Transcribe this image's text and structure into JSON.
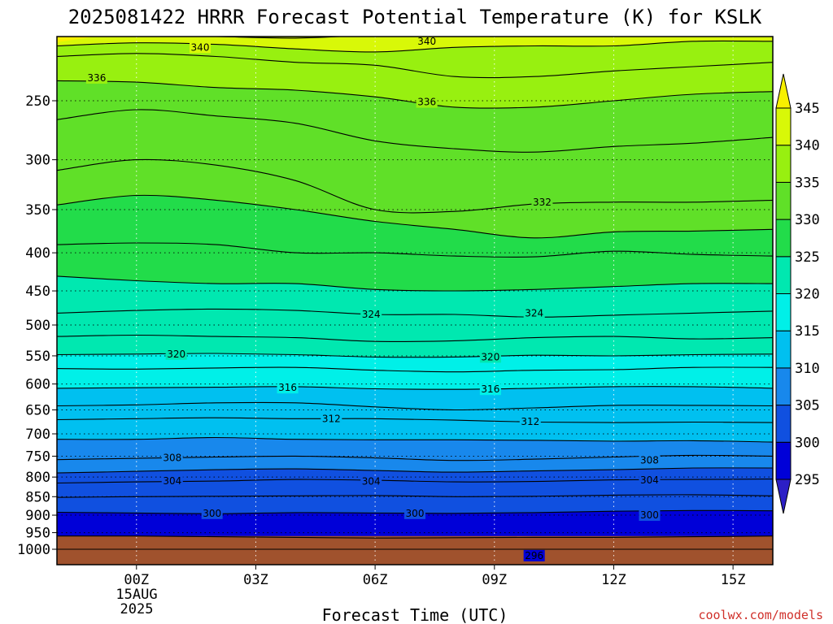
{
  "chart_data": {
    "type": "heatmap",
    "title": "2025081422 HRRR Forecast Potential Temperature (K) for KSLK",
    "xlabel": "Forecast Time (UTC)",
    "ylabel": "",
    "x_tick_labels": [
      "00Z",
      "03Z",
      "06Z",
      "09Z",
      "12Z",
      "15Z"
    ],
    "x_ticks_hours": [
      0,
      3,
      6,
      9,
      12,
      15
    ],
    "x_date_line1": "15AUG",
    "x_date_line2": "2025",
    "xlim_hours": [
      -2,
      16
    ],
    "y_tick_labels": [
      "250",
      "300",
      "350",
      "400",
      "450",
      "500",
      "550",
      "600",
      "650",
      "700",
      "750",
      "800",
      "850",
      "900",
      "950",
      "1000"
    ],
    "y_ticks": [
      250,
      300,
      350,
      400,
      450,
      500,
      550,
      600,
      650,
      700,
      750,
      800,
      850,
      900,
      950,
      1000
    ],
    "ylim_hpa": [
      1050,
      200
    ],
    "y_scale": "log (pressure)",
    "grid": "dotted",
    "surface_pressure_hpa": 960,
    "colorbar": {
      "levels": [
        "295",
        "300",
        "305",
        "310",
        "315",
        "320",
        "325",
        "330",
        "335",
        "340",
        "345"
      ],
      "colors": [
        "#2c1fc6",
        "#0000d8",
        "#1050e0",
        "#1888ec",
        "#00c0f0",
        "#00f0e8",
        "#00e8b0",
        "#22dc4a",
        "#60e028",
        "#98f010",
        "#d8f808",
        "#f8f000"
      ],
      "extends": "both"
    },
    "fill_bands": [
      {
        "range": "<295",
        "color": "#2c1fc6"
      },
      {
        "range": "295-300",
        "color": "#0000d8"
      },
      {
        "range": "300-305",
        "color": "#1050e0"
      },
      {
        "range": "305-310",
        "color": "#1888ec"
      },
      {
        "range": "310-315",
        "color": "#00c0f0"
      },
      {
        "range": "315-320",
        "color": "#00f0e8"
      },
      {
        "range": "320-325",
        "color": "#00e8b0"
      },
      {
        "range": "325-330",
        "color": "#22dc4a"
      },
      {
        "range": "330-335",
        "color": "#60e028"
      },
      {
        "range": "335-340",
        "color": "#98f010"
      },
      {
        "range": "340-345",
        "color": "#d8f808"
      },
      {
        "range": ">345",
        "color": "#f8f000"
      }
    ],
    "isentropes": {
      "x_hours": [
        -2,
        0,
        2,
        4,
        6,
        8,
        10,
        12,
        14,
        16
      ],
      "lines": [
        {
          "theta": 296,
          "p": [
            1000,
            1000,
            1000,
            1000,
            1000,
            1000,
            1000,
            1000,
            1000,
            1000
          ]
        },
        {
          "theta": 298,
          "p": [
            960,
            960,
            962,
            964,
            966,
            965,
            964,
            964,
            962,
            960
          ]
        },
        {
          "theta": 300,
          "p": [
            892,
            894,
            896,
            893,
            894,
            895,
            893,
            889,
            887,
            888
          ]
        },
        {
          "theta": 302,
          "p": [
            852,
            850,
            849,
            848,
            847,
            850,
            849,
            846,
            845,
            848
          ]
        },
        {
          "theta": 304,
          "p": [
            815,
            812,
            810,
            806,
            808,
            812,
            811,
            807,
            806,
            805
          ]
        },
        {
          "theta": 306,
          "p": [
            790,
            786,
            782,
            780,
            784,
            788,
            785,
            782,
            778,
            778
          ]
        },
        {
          "theta": 308,
          "p": [
            758,
            755,
            752,
            750,
            754,
            760,
            757,
            752,
            748,
            750
          ]
        },
        {
          "theta": 310,
          "p": [
            712,
            712,
            708,
            712,
            713,
            713,
            714,
            716,
            715,
            718
          ]
        },
        {
          "theta": 312,
          "p": [
            670,
            668,
            666,
            668,
            668,
            671,
            675,
            676,
            675,
            676
          ]
        },
        {
          "theta": 314,
          "p": [
            642,
            640,
            636,
            636,
            644,
            650,
            646,
            641,
            641,
            642
          ]
        },
        {
          "theta": 316,
          "p": [
            608,
            607,
            606,
            605,
            609,
            610,
            608,
            605,
            605,
            608
          ]
        },
        {
          "theta": 318,
          "p": [
            572,
            573,
            571,
            570,
            575,
            578,
            575,
            574,
            570,
            570
          ]
        },
        {
          "theta": 320,
          "p": [
            548,
            547,
            546,
            548,
            552,
            552,
            549,
            550,
            548,
            547
          ]
        },
        {
          "theta": 322,
          "p": [
            518,
            516,
            518,
            520,
            526,
            525,
            520,
            518,
            522,
            520
          ]
        },
        {
          "theta": 324,
          "p": [
            482,
            478,
            476,
            478,
            484,
            484,
            488,
            485,
            482,
            479
          ]
        },
        {
          "theta": 326,
          "p": [
            430,
            436,
            440,
            440,
            448,
            450,
            448,
            444,
            440,
            440
          ]
        },
        {
          "theta": 328,
          "p": [
            390,
            388,
            390,
            400,
            400,
            404,
            405,
            398,
            402,
            404
          ]
        },
        {
          "theta": 330,
          "p": [
            345,
            335,
            340,
            350,
            363,
            372,
            382,
            375,
            374,
            372
          ]
        },
        {
          "theta": 332,
          "p": [
            310,
            300,
            305,
            320,
            350,
            352,
            344,
            342,
            342,
            340
          ]
        },
        {
          "theta": 334,
          "p": [
            265,
            257,
            262,
            268,
            283,
            290,
            293,
            288,
            285,
            280
          ]
        },
        {
          "theta": 336,
          "p": [
            235,
            236,
            240,
            242,
            247,
            255,
            255,
            250,
            245,
            243
          ]
        },
        {
          "theta": 338,
          "p": [
            218,
            216,
            218,
            222,
            224,
            232,
            232,
            228,
            225,
            222
          ]
        },
        {
          "theta": 340,
          "p": [
            211,
            209,
            210,
            213,
            215,
            212,
            211,
            211,
            208,
            208
          ]
        },
        {
          "theta": 342,
          "p": [
            205,
            204,
            205,
            206,
            204,
            203,
            203,
            204,
            203,
            203
          ]
        }
      ]
    },
    "contour_labels": [
      {
        "text": "340",
        "x_hours": 1.6,
        "p": 212
      },
      {
        "text": "340",
        "x_hours": 7.3,
        "p": 208
      },
      {
        "text": "336",
        "x_hours": -1.0,
        "p": 233
      },
      {
        "text": "336",
        "x_hours": 7.3,
        "p": 251
      },
      {
        "text": "332",
        "x_hours": 10.2,
        "p": 342
      },
      {
        "text": "324",
        "x_hours": 5.9,
        "p": 484
      },
      {
        "text": "324",
        "x_hours": 10.0,
        "p": 482
      },
      {
        "text": "320",
        "x_hours": 1.0,
        "p": 547
      },
      {
        "text": "320",
        "x_hours": 8.9,
        "p": 552
      },
      {
        "text": "316",
        "x_hours": 3.8,
        "p": 607
      },
      {
        "text": "316",
        "x_hours": 8.9,
        "p": 610
      },
      {
        "text": "312",
        "x_hours": 4.9,
        "p": 668
      },
      {
        "text": "312",
        "x_hours": 9.9,
        "p": 674
      },
      {
        "text": "308",
        "x_hours": 0.9,
        "p": 754
      },
      {
        "text": "308",
        "x_hours": 12.9,
        "p": 760
      },
      {
        "text": "304",
        "x_hours": 0.9,
        "p": 810
      },
      {
        "text": "304",
        "x_hours": 5.9,
        "p": 811
      },
      {
        "text": "304",
        "x_hours": 12.9,
        "p": 808
      },
      {
        "text": "300",
        "x_hours": 1.9,
        "p": 895
      },
      {
        "text": "300",
        "x_hours": 7.0,
        "p": 895
      },
      {
        "text": "300",
        "x_hours": 12.9,
        "p": 900
      },
      {
        "text": "296",
        "x_hours": 10.0,
        "p": 1020
      }
    ]
  },
  "credit": "coolwx.com/models"
}
